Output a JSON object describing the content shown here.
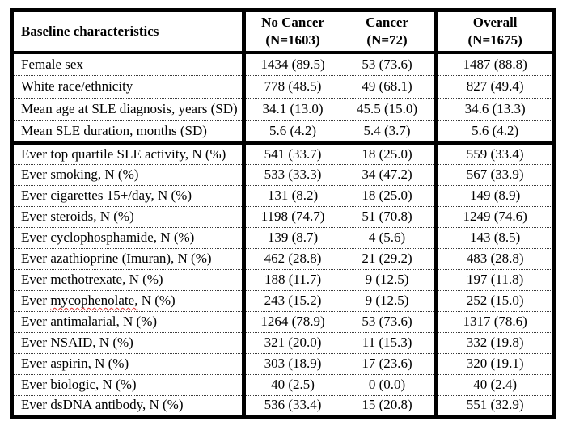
{
  "table": {
    "header_label": "Baseline characteristics",
    "columns": [
      {
        "title": "No Cancer",
        "n": "(N=1603)"
      },
      {
        "title": "Cancer",
        "n": "(N=72)"
      },
      {
        "title": "Overall",
        "n": "(N=1675)"
      }
    ],
    "rows": [
      {
        "label": "Female sex",
        "values": [
          "1434 (89.5)",
          "53 (73.6)",
          "1487 (88.8)"
        ]
      },
      {
        "label": "White race/ethnicity",
        "values": [
          "778 (48.5)",
          "49 (68.1)",
          "827 (49.4)"
        ]
      },
      {
        "label": "Mean age at SLE diagnosis, years (SD)",
        "values": [
          "34.1 (13.0)",
          "45.5 (15.0)",
          "34.6 (13.3)"
        ]
      },
      {
        "label": "Mean SLE duration, months (SD)",
        "values": [
          "5.6 (4.2)",
          "5.4 (3.7)",
          "5.6 (4.2)"
        ]
      },
      {
        "label": "Ever top quartile SLE activity, N (%)",
        "values": [
          "541 (33.7)",
          "18 (25.0)",
          "559 (33.4)"
        ]
      },
      {
        "label": "Ever smoking, N (%)",
        "values": [
          "533 (33.3)",
          "34 (47.2)",
          "567 (33.9)"
        ]
      },
      {
        "label": "Ever cigarettes 15+/day, N (%)",
        "values": [
          "131 (8.2)",
          "18 (25.0)",
          "149 (8.9)"
        ]
      },
      {
        "label": "Ever steroids, N (%)",
        "values": [
          "1198 (74.7)",
          "51 (70.8)",
          "1249 (74.6)"
        ]
      },
      {
        "label": "Ever cyclophosphamide, N (%)",
        "values": [
          "139 (8.7)",
          "4 (5.6)",
          "143 (8.5)"
        ]
      },
      {
        "label": "Ever azathioprine (Imuran), N (%)",
        "values": [
          "462 (28.8)",
          "21 (29.2)",
          "483 (28.8)"
        ]
      },
      {
        "label": "Ever methotrexate, N (%)",
        "values": [
          "188 (11.7)",
          "9 (12.5)",
          "197 (11.8)"
        ]
      },
      {
        "label_pre": "Ever ",
        "label_mis": "mycophenolate,",
        "label_post": " N (%)",
        "values": [
          "243 (15.2)",
          "9 (12.5)",
          "252 (15.0)"
        ]
      },
      {
        "label": "Ever antimalarial, N (%)",
        "values": [
          "1264 (78.9)",
          "53 (73.6)",
          "1317 (78.6)"
        ]
      },
      {
        "label": "Ever NSAID, N (%)",
        "values": [
          "321 (20.0)",
          "11 (15.3)",
          "332 (19.8)"
        ]
      },
      {
        "label": "Ever aspirin, N (%)",
        "values": [
          "303 (18.9)",
          "17 (23.6)",
          "320 (19.1)"
        ]
      },
      {
        "label": "Ever biologic, N (%)",
        "values": [
          "40 (2.5)",
          "0 (0.0)",
          "40 (2.4)"
        ]
      },
      {
        "label": "Ever dsDNA antibody, N (%)",
        "values": [
          "536 (33.4)",
          "15 (20.8)",
          "551 (32.9)"
        ]
      }
    ]
  }
}
